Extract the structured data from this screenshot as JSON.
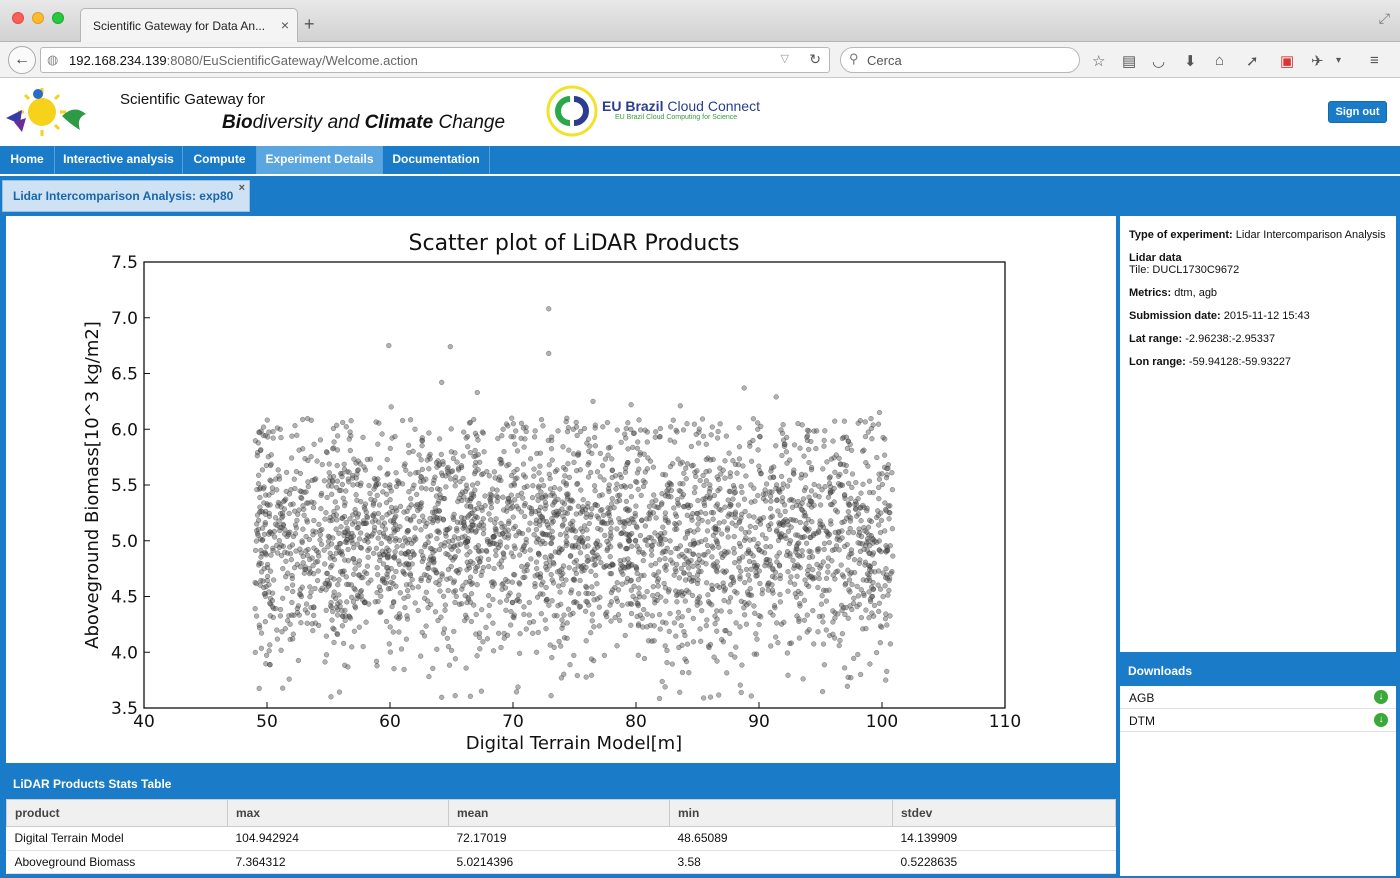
{
  "browser": {
    "tab_title": "Scientific Gateway for Data An...",
    "url_host": "192.168.234.139",
    "url_rest": ":8080/EuScientificGateway/Welcome.action",
    "search_placeholder": "Cerca"
  },
  "header": {
    "gateway_line1": "Scientific Gateway for",
    "gw_bio_bold": "Bio",
    "gw_bio_rest": "diversity and ",
    "gw_climate_bold": "Climate",
    "gw_change": " Change",
    "eubc_bold": "EU Brazil",
    "eubc_rest": " Cloud Connect",
    "eubc_sub": "EU Brazil Cloud Computing for Science",
    "sign_out": "Sign out"
  },
  "menu": {
    "items": [
      {
        "label": "Home"
      },
      {
        "label": "Interactive analysis"
      },
      {
        "label": "Compute"
      },
      {
        "label": "Experiment Details"
      },
      {
        "label": "Documentation"
      }
    ],
    "active": "Experiment Details"
  },
  "experiment_tab": {
    "label": "Lidar Intercomparison Analysis: exp80",
    "close": "×"
  },
  "details": {
    "type_label": "Type of experiment:",
    "type_value": "Lidar Intercomparison Analysis",
    "lidar_label": "Lidar data",
    "tile_value": "Tile: DUCL1730C9672",
    "metrics_label": "Metrics:",
    "metrics_value": "dtm, agb",
    "submission_label": "Submission date:",
    "submission_value": "2015-11-12 15:43",
    "lat_label": "Lat range:",
    "lat_value": "-2.96238:-2.95337",
    "lon_label": "Lon range:",
    "lon_value": "-59.94128:-59.93227"
  },
  "downloads": {
    "header": "Downloads",
    "items": [
      {
        "label": "AGB"
      },
      {
        "label": "DTM"
      }
    ]
  },
  "stats": {
    "header": "LiDAR Products Stats Table",
    "columns": [
      "product",
      "max",
      "mean",
      "min",
      "stdev"
    ],
    "rows": [
      [
        "Digital Terrain Model",
        "104.942924",
        "72.17019",
        "48.65089",
        "14.139909"
      ],
      [
        "Aboveground Biomass",
        "7.364312",
        "5.0214396",
        "3.58",
        "0.5228635"
      ]
    ]
  },
  "chart_data": {
    "type": "scatter",
    "title": "Scatter plot of LiDAR Products",
    "xlabel": "Digital Terrain Model[m]",
    "ylabel": "Aboveground Biomass[10^3 kg/m2]",
    "xlim": [
      40,
      110
    ],
    "ylim": [
      3.5,
      7.5
    ],
    "xticks": [
      "40",
      "50",
      "60",
      "70",
      "80",
      "90",
      "100",
      "110"
    ],
    "yticks": [
      "3.5",
      "4.0",
      "4.5",
      "5.0",
      "5.5",
      "6.0",
      "6.5",
      "7.0",
      "7.5"
    ],
    "point_color": "#555555",
    "outliers": [
      {
        "x": 72.9,
        "y": 7.08
      },
      {
        "x": 72.9,
        "y": 6.68
      },
      {
        "x": 59.9,
        "y": 6.75
      },
      {
        "x": 64.9,
        "y": 6.74
      },
      {
        "x": 64.2,
        "y": 6.42
      },
      {
        "x": 88.8,
        "y": 6.37
      },
      {
        "x": 91.4,
        "y": 6.29
      },
      {
        "x": 99.8,
        "y": 6.15
      },
      {
        "x": 67.1,
        "y": 6.33
      },
      {
        "x": 53.6,
        "y": 6.08
      },
      {
        "x": 60.1,
        "y": 6.2
      },
      {
        "x": 76.5,
        "y": 6.25
      },
      {
        "x": 79.6,
        "y": 6.22
      },
      {
        "x": 83.6,
        "y": 6.21
      },
      {
        "x": 86.2,
        "y": 6.02
      },
      {
        "x": 49.4,
        "y": 5.97
      },
      {
        "x": 95.3,
        "y": 5.9
      },
      {
        "x": 73.1,
        "y": 3.61
      },
      {
        "x": 65.3,
        "y": 3.61
      },
      {
        "x": 55.2,
        "y": 3.6
      },
      {
        "x": 85.5,
        "y": 3.59
      },
      {
        "x": 100.3,
        "y": 3.75
      }
    ],
    "distribution": {
      "n": 3200,
      "x_range": [
        49,
        100.9
      ],
      "y_mean": 5.02,
      "y_stdev": 0.52,
      "y_clip": [
        3.58,
        6.1
      ],
      "seed": 80
    }
  }
}
